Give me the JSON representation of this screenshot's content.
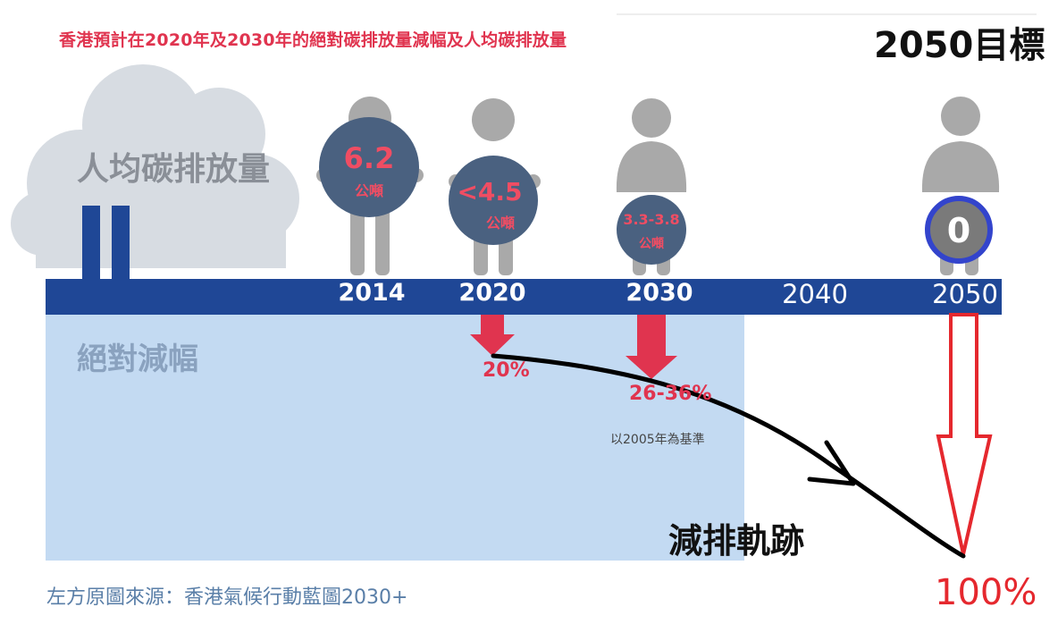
{
  "title": "香港預計在2020年及2030年的絕對碳排放量減幅及人均碳排放量",
  "target_label": "2050目標",
  "per_capita_label": "人均碳排放量",
  "reduction_label": "絕對減幅",
  "timeline": {
    "years": [
      "2014",
      "2020",
      "2030",
      "2040",
      "2050"
    ]
  },
  "per_capita": [
    {
      "year": "2014",
      "value": "6.2",
      "unit": "公噸"
    },
    {
      "year": "2020",
      "value": "<4.5",
      "unit": "公噸"
    },
    {
      "year": "2030",
      "value": "3.3-3.8",
      "unit": "公噸"
    },
    {
      "year": "2050",
      "value": "0",
      "unit": ""
    }
  ],
  "reductions": [
    {
      "year": "2020",
      "value": "20%"
    },
    {
      "year": "2030",
      "value": "26-36%"
    },
    {
      "year": "2050",
      "value": "100%"
    }
  ],
  "baseline_note": "以2005年為基準",
  "trajectory_label": "減排軌跡",
  "source": "左方原圖來源：香港氣候行動藍圖2030+",
  "colors": {
    "timeline_bar": "#1f4796",
    "reduction_panel": "#c3daf2",
    "bubble": "#4a6180",
    "figure": "#a9a9a9",
    "cloud": "#d7dce2",
    "accent_red": "#e0344f",
    "outline_red": "#e5282e",
    "ring_blue": "#3344cc"
  }
}
